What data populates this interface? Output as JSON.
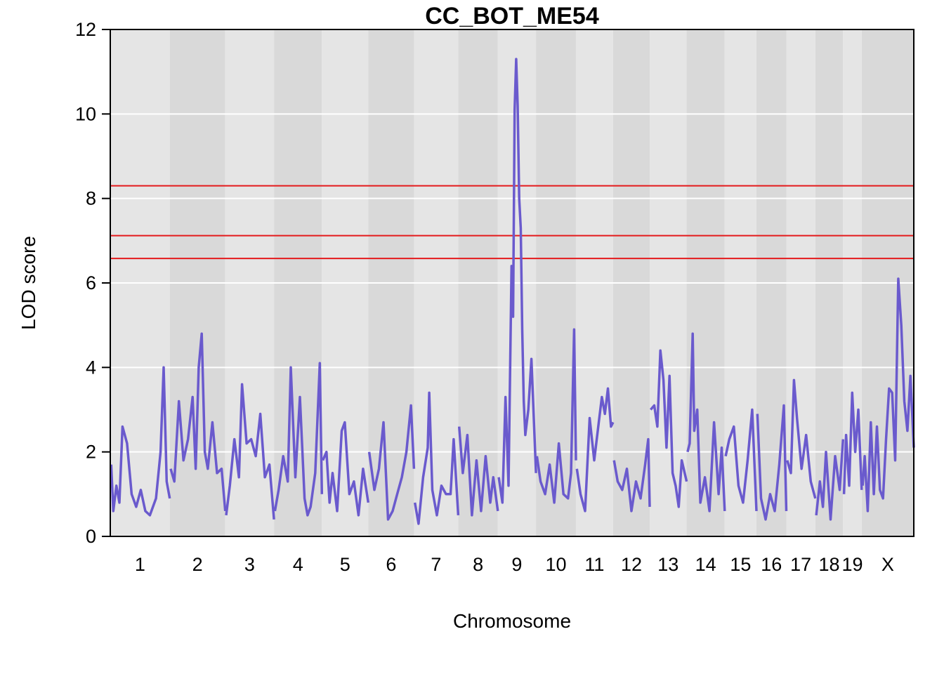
{
  "chart_data": {
    "type": "line",
    "title": "CC_BOT_ME54",
    "xlabel": "Chromosome",
    "ylabel": "LOD score",
    "ylim": [
      0,
      12
    ],
    "yticks": [
      0,
      2,
      4,
      6,
      8,
      10,
      12
    ],
    "grid": true,
    "series_color": "#6a5acd",
    "threshold_color": "#e41a1c",
    "band_colors": [
      "#e5e5e5",
      "#d9d9d9"
    ],
    "thresholds": [
      8.3,
      7.12,
      6.58
    ],
    "chromosomes": [
      {
        "label": "1",
        "length": 195
      },
      {
        "label": "2",
        "length": 182
      },
      {
        "label": "3",
        "length": 160
      },
      {
        "label": "4",
        "length": 157
      },
      {
        "label": "5",
        "length": 152
      },
      {
        "label": "6",
        "length": 150
      },
      {
        "label": "7",
        "length": 145
      },
      {
        "label": "8",
        "length": 130
      },
      {
        "label": "9",
        "length": 125
      },
      {
        "label": "10",
        "length": 131
      },
      {
        "label": "11",
        "length": 122
      },
      {
        "label": "12",
        "length": 120
      },
      {
        "label": "13",
        "length": 121
      },
      {
        "label": "14",
        "length": 125
      },
      {
        "label": "15",
        "length": 104
      },
      {
        "label": "16",
        "length": 98
      },
      {
        "label": "17",
        "length": 95
      },
      {
        "label": "18",
        "length": 91
      },
      {
        "label": "19",
        "length": 61
      },
      {
        "label": "X",
        "length": 171
      }
    ],
    "lod_profile": [
      {
        "chr": "1",
        "pos": [
          3,
          10,
          20,
          30,
          40,
          55,
          70,
          85,
          100,
          115,
          130,
          150,
          165,
          175,
          185,
          195
        ],
        "lod": [
          1.7,
          0.6,
          1.2,
          0.8,
          2.6,
          2.2,
          1.0,
          0.7,
          1.1,
          0.6,
          0.5,
          0.9,
          2.0,
          4.0,
          1.3,
          0.9
        ]
      },
      {
        "chr": "2",
        "pos": [
          3,
          15,
          30,
          45,
          60,
          75,
          85,
          95,
          105,
          115,
          125,
          140,
          155,
          170,
          182
        ],
        "lod": [
          1.6,
          1.3,
          3.2,
          1.8,
          2.3,
          3.3,
          1.6,
          4.0,
          4.8,
          2.0,
          1.6,
          2.7,
          1.5,
          1.6,
          0.6
        ]
      },
      {
        "chr": "3",
        "pos": [
          3,
          15,
          30,
          45,
          55,
          70,
          85,
          100,
          115,
          130,
          145,
          160
        ],
        "lod": [
          0.5,
          1.2,
          2.3,
          1.4,
          3.6,
          2.2,
          2.3,
          1.9,
          2.9,
          1.4,
          1.7,
          0.4
        ]
      },
      {
        "chr": "4",
        "pos": [
          3,
          15,
          30,
          45,
          55,
          70,
          85,
          100,
          110,
          120,
          135,
          150,
          157
        ],
        "lod": [
          0.6,
          1.1,
          1.9,
          1.3,
          4.0,
          1.4,
          3.3,
          0.9,
          0.5,
          0.7,
          1.5,
          4.1,
          1.0
        ]
      },
      {
        "chr": "5",
        "pos": [
          3,
          15,
          25,
          35,
          50,
          65,
          75,
          90,
          105,
          120,
          135,
          152
        ],
        "lod": [
          1.8,
          2.0,
          0.8,
          1.5,
          0.6,
          2.5,
          2.7,
          1.0,
          1.3,
          0.5,
          1.6,
          0.8
        ]
      },
      {
        "chr": "6",
        "pos": [
          3,
          20,
          35,
          50,
          65,
          80,
          95,
          110,
          125,
          140,
          150
        ],
        "lod": [
          2.0,
          1.1,
          1.6,
          2.7,
          0.4,
          0.6,
          1.0,
          1.4,
          2.0,
          3.1,
          1.6
        ]
      },
      {
        "chr": "7",
        "pos": [
          3,
          15,
          30,
          45,
          50,
          60,
          75,
          90,
          105,
          120,
          130,
          145
        ],
        "lod": [
          0.8,
          0.3,
          1.4,
          2.1,
          3.4,
          1.1,
          0.5,
          1.2,
          1.0,
          1.0,
          2.3,
          0.5
        ]
      },
      {
        "chr": "8",
        "pos": [
          3,
          15,
          30,
          45,
          60,
          75,
          90,
          105,
          115,
          130
        ],
        "lod": [
          2.6,
          1.5,
          2.4,
          0.5,
          1.8,
          0.6,
          1.9,
          0.8,
          1.4,
          0.6
        ]
      },
      {
        "chr": "9",
        "pos": [
          3,
          15,
          25,
          35,
          45,
          50,
          55,
          60,
          65,
          70,
          75,
          80,
          85,
          90,
          100,
          110,
          125
        ],
        "lod": [
          1.4,
          0.8,
          3.3,
          1.2,
          6.4,
          5.2,
          10.1,
          11.3,
          10.2,
          8.0,
          7.3,
          4.9,
          3.2,
          2.4,
          3.0,
          4.2,
          1.5
        ]
      },
      {
        "chr": "10",
        "pos": [
          3,
          15,
          30,
          45,
          60,
          75,
          90,
          105,
          115,
          125,
          131
        ],
        "lod": [
          1.9,
          1.3,
          1.0,
          1.7,
          0.8,
          2.2,
          1.0,
          0.9,
          1.5,
          4.9,
          1.8
        ]
      },
      {
        "chr": "11",
        "pos": [
          3,
          15,
          30,
          45,
          60,
          75,
          85,
          95,
          105,
          115,
          122
        ],
        "lod": [
          1.6,
          1.0,
          0.6,
          2.8,
          1.8,
          2.7,
          3.3,
          2.9,
          3.5,
          2.6,
          2.7
        ]
      },
      {
        "chr": "12",
        "pos": [
          3,
          15,
          30,
          45,
          60,
          75,
          90,
          105,
          115,
          120
        ],
        "lod": [
          1.8,
          1.3,
          1.1,
          1.6,
          0.6,
          1.3,
          0.9,
          1.7,
          2.3,
          0.7
        ]
      },
      {
        "chr": "13",
        "pos": [
          3,
          15,
          25,
          35,
          45,
          55,
          65,
          75,
          85,
          95,
          105,
          121
        ],
        "lod": [
          3.0,
          3.1,
          2.6,
          4.4,
          3.7,
          2.1,
          3.8,
          1.5,
          1.2,
          0.7,
          1.8,
          1.3
        ]
      },
      {
        "chr": "14",
        "pos": [
          3,
          10,
          20,
          25,
          35,
          45,
          60,
          75,
          90,
          105,
          115,
          125
        ],
        "lod": [
          2.0,
          2.2,
          4.8,
          2.5,
          3.0,
          0.8,
          1.4,
          0.6,
          2.7,
          1.0,
          2.1,
          0.6
        ]
      },
      {
        "chr": "15",
        "pos": [
          3,
          15,
          30,
          45,
          60,
          75,
          90,
          104
        ],
        "lod": [
          1.9,
          2.3,
          2.6,
          1.2,
          0.8,
          1.8,
          3.0,
          0.6
        ]
      },
      {
        "chr": "16",
        "pos": [
          3,
          15,
          30,
          45,
          60,
          75,
          90,
          98
        ],
        "lod": [
          2.9,
          0.9,
          0.4,
          1.0,
          0.6,
          1.7,
          3.1,
          0.6
        ]
      },
      {
        "chr": "17",
        "pos": [
          3,
          15,
          25,
          35,
          50,
          65,
          80,
          95
        ],
        "lod": [
          1.8,
          1.5,
          3.7,
          2.8,
          1.6,
          2.4,
          1.3,
          0.9
        ]
      },
      {
        "chr": "18",
        "pos": [
          3,
          15,
          25,
          35,
          50,
          65,
          80,
          91
        ],
        "lod": [
          0.5,
          1.3,
          0.7,
          2.0,
          0.4,
          1.9,
          1.1,
          2.3
        ]
      },
      {
        "chr": "19",
        "pos": [
          3,
          10,
          20,
          30,
          40,
          50,
          61
        ],
        "lod": [
          1.0,
          2.4,
          1.2,
          3.4,
          2.0,
          3.0,
          1.1
        ]
      },
      {
        "chr": "X",
        "pos": [
          3,
          10,
          20,
          30,
          40,
          50,
          60,
          70,
          80,
          90,
          100,
          110,
          120,
          130,
          140,
          150,
          160,
          171
        ],
        "lod": [
          1.2,
          1.9,
          0.6,
          2.7,
          1.0,
          2.6,
          1.1,
          0.9,
          2.3,
          3.5,
          3.4,
          1.8,
          6.1,
          5.0,
          3.2,
          2.5,
          3.8,
          2.1
        ]
      }
    ]
  }
}
